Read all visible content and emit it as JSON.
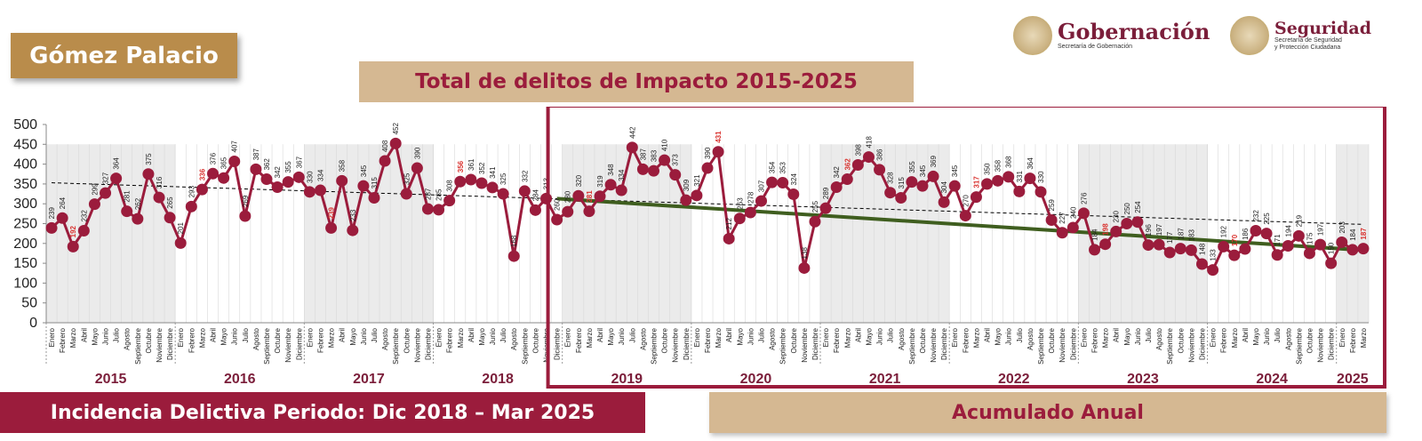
{
  "header": {
    "place": "Gómez Palacio",
    "title": "Total de delitos de Impacto 2015-2025",
    "logo_gob": {
      "main": "Gobernación",
      "sub": "Secretaría de Gobernación"
    },
    "logo_seg": {
      "main": "Seguridad",
      "sub1": "Secretaría de Seguridad",
      "sub2": "y Protección Ciudadana"
    }
  },
  "footer": {
    "left": "Incidencia Delictiva Periodo: Dic 2018 – Mar 2025",
    "right": "Acumulado Anual"
  },
  "colors": {
    "series": "#9b1c3c",
    "trend_recent": "#3f5e1f",
    "trend_all": "#000000",
    "shade": "#ebebeb",
    "highlight_box": "#9b1c3c"
  },
  "chart_data": {
    "type": "line",
    "title": "Total de delitos de Impacto 2015-2025",
    "ylim": [
      0,
      500
    ],
    "yticks": [
      0,
      50,
      100,
      150,
      200,
      250,
      300,
      350,
      400,
      450,
      500
    ],
    "months": [
      "Enero",
      "Febrero",
      "Marzo",
      "Abril",
      "Mayo",
      "Junio",
      "Julio",
      "Agosto",
      "Septiembre",
      "Octubre",
      "Noviembre",
      "Diciembre"
    ],
    "years": [
      {
        "year": "2015",
        "values": [
          239,
          264,
          192,
          232,
          299,
          327,
          364,
          281,
          262,
          375,
          316,
          265
        ]
      },
      {
        "year": "2016",
        "values": [
          201,
          293,
          336,
          376,
          365,
          407,
          269,
          387,
          362,
          342,
          355,
          367
        ]
      },
      {
        "year": "2017",
        "values": [
          330,
          334,
          239,
          358,
          233,
          345,
          315,
          408,
          452,
          325,
          390,
          287
        ]
      },
      {
        "year": "2018",
        "values": [
          285,
          308,
          356,
          361,
          352,
          341,
          325,
          168,
          332,
          284,
          313,
          260
        ]
      },
      {
        "year": "2019",
        "values": [
          280,
          320,
          281,
          319,
          348,
          334,
          442,
          387,
          383,
          410,
          373,
          309
        ]
      },
      {
        "year": "2020",
        "values": [
          321,
          390,
          431,
          212,
          263,
          278,
          307,
          354,
          353,
          324,
          138,
          255
        ]
      },
      {
        "year": "2021",
        "values": [
          289,
          342,
          362,
          398,
          418,
          386,
          328,
          315,
          355,
          345,
          369,
          304
        ]
      },
      {
        "year": "2022",
        "values": [
          345,
          270,
          317,
          350,
          358,
          368,
          331,
          364,
          330,
          259,
          227,
          240
        ]
      },
      {
        "year": "2023",
        "values": [
          276,
          184,
          198,
          230,
          250,
          254,
          196,
          197,
          177,
          187,
          183,
          148
        ]
      },
      {
        "year": "2024",
        "values": [
          133,
          192,
          170,
          186,
          232,
          225,
          171,
          194,
          219,
          175,
          197,
          150
        ]
      },
      {
        "year": "2025",
        "values": [
          203,
          184,
          187
        ]
      }
    ],
    "red_labels": [
      "2015-2",
      "2016-2",
      "2017-2",
      "2018-2",
      "2019-2",
      "2020-2",
      "2021-2",
      "2022-2",
      "2023-2",
      "2024-2",
      "2025-2"
    ],
    "shaded_years": [
      "2015",
      "2017",
      "2019",
      "2021",
      "2023",
      "2025"
    ],
    "trend_all": {
      "start": 353,
      "end": 248
    },
    "trend_recent": {
      "start": 313,
      "end": 183
    }
  }
}
